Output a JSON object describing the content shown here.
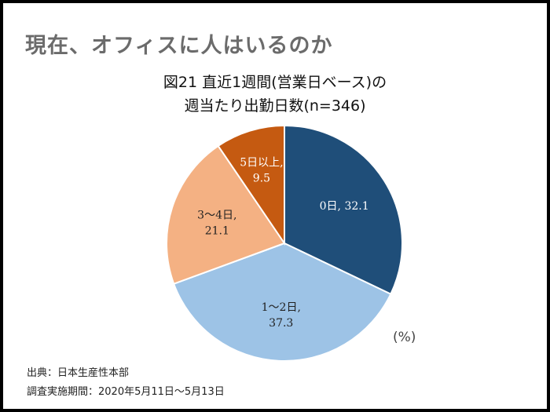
{
  "slide_title": "現在、オフィスに人はいるのか",
  "chart_data": {
    "type": "pie",
    "title_line1": "図21 直近1週間(営業日ベース)の",
    "title_line2": "週当たり出勤日数(n=346)",
    "unit": "(%)",
    "start": "top, clockwise",
    "slices": [
      {
        "label": "0日",
        "value": 32.1,
        "color": "#1F4E79",
        "label_color": "#ffffff"
      },
      {
        "label": "1〜2日",
        "value": 37.3,
        "color": "#9DC3E6",
        "label_color": "#222222"
      },
      {
        "label": "3〜4日",
        "value": 21.1,
        "color": "#F4B183",
        "label_color": "#222222"
      },
      {
        "label": "5日以上",
        "value": 9.5,
        "color": "#C55A11",
        "label_color": "#ffffff"
      }
    ]
  },
  "notes": {
    "source": "出典：日本生産性本部",
    "period": "調査実施期間：2020年5月11日〜5月13日"
  }
}
